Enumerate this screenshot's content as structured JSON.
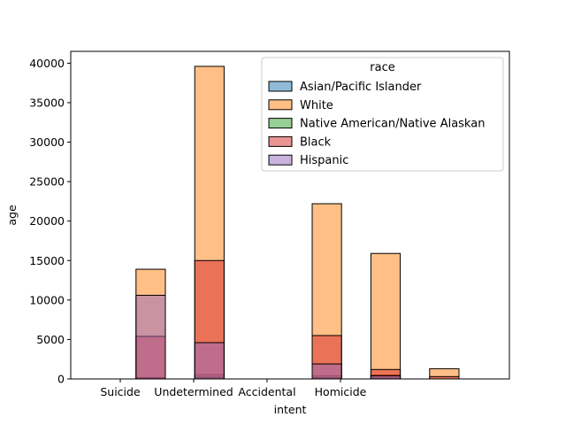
{
  "chart_data": {
    "type": "bar",
    "title": "",
    "xlabel": "intent",
    "ylabel": "age",
    "x_tick_labels": [
      "Suicide",
      "Undetermined",
      "Accidental",
      "Homicide"
    ],
    "ylim": [
      0,
      41500
    ],
    "y_ticks": [
      0,
      5000,
      10000,
      15000,
      20000,
      25000,
      30000,
      35000,
      40000
    ],
    "grid": false,
    "legend": {
      "title": "race",
      "placement": "top-right"
    },
    "series": [
      {
        "name": "Asian/Pacific Islander",
        "color": "#1f77b4",
        "bars": [
          {
            "bin": 2,
            "value": 180
          },
          {
            "bin": 3,
            "value": 550
          },
          {
            "bin": 5,
            "value": 400
          },
          {
            "bin": 6,
            "value": 500
          }
        ]
      },
      {
        "name": "White",
        "color": "#ff7f0e",
        "bars": [
          {
            "bin": 2,
            "value": 13900
          },
          {
            "bin": 3,
            "value": 39600
          },
          {
            "bin": 5,
            "value": 22200
          },
          {
            "bin": 6,
            "value": 15900
          },
          {
            "bin": 7,
            "value": 1300
          }
        ]
      },
      {
        "name": "Native American/Native Alaskan",
        "color": "#2ca02c",
        "bars": [
          {
            "bin": 2,
            "value": 100
          },
          {
            "bin": 3,
            "value": 200
          },
          {
            "bin": 5,
            "value": 150
          },
          {
            "bin": 6,
            "value": 100
          }
        ]
      },
      {
        "name": "Black",
        "color": "#d62728",
        "bars": [
          {
            "bin": 2,
            "value": 5400
          },
          {
            "bin": 3,
            "value": 15000
          },
          {
            "bin": 5,
            "value": 5500
          },
          {
            "bin": 6,
            "value": 1200
          },
          {
            "bin": 7,
            "value": 300
          }
        ]
      },
      {
        "name": "Hispanic",
        "color": "#9467bd",
        "bars": [
          {
            "bin": 2,
            "value": 10600
          },
          {
            "bin": 3,
            "value": 4600
          },
          {
            "bin": 5,
            "value": 1900
          },
          {
            "bin": 6,
            "value": 400
          }
        ]
      }
    ]
  }
}
